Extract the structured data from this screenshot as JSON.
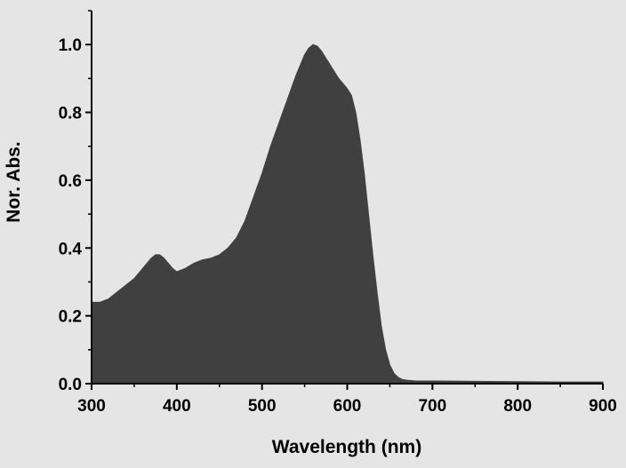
{
  "chart_data": {
    "type": "area",
    "title": "",
    "xlabel": "Wavelength (nm)",
    "ylabel": "Nor. Abs.",
    "xlim": [
      300,
      900
    ],
    "ylim": [
      0,
      1.1
    ],
    "x_ticks": [
      300,
      400,
      500,
      600,
      700,
      800,
      900
    ],
    "x_tick_labels": [
      "300",
      "400",
      "500",
      "600",
      "700",
      "800",
      "900"
    ],
    "y_ticks": [
      0.0,
      0.2,
      0.4,
      0.6,
      0.8,
      1.0
    ],
    "y_tick_labels": [
      "0.0",
      "0.2",
      "0.4",
      "0.6",
      "0.8",
      "1.0"
    ],
    "grid": false,
    "colors": {
      "background": "#e5e5e5",
      "fill": "#404040",
      "axis": "#000000"
    },
    "series": [
      {
        "x": [
          300,
          310,
          320,
          330,
          340,
          350,
          360,
          370,
          375,
          380,
          385,
          390,
          395,
          400,
          405,
          410,
          420,
          430,
          440,
          450,
          460,
          470,
          480,
          490,
          500,
          510,
          520,
          530,
          540,
          550,
          555,
          560,
          565,
          570,
          580,
          590,
          600,
          605,
          610,
          615,
          620,
          625,
          630,
          635,
          640,
          645,
          650,
          655,
          660,
          665,
          670,
          675,
          680,
          690,
          700,
          750,
          800,
          850,
          900
        ],
        "y": [
          0.24,
          0.24,
          0.25,
          0.27,
          0.29,
          0.31,
          0.34,
          0.37,
          0.38,
          0.38,
          0.37,
          0.355,
          0.34,
          0.33,
          0.335,
          0.34,
          0.355,
          0.365,
          0.37,
          0.38,
          0.4,
          0.43,
          0.48,
          0.55,
          0.62,
          0.7,
          0.77,
          0.84,
          0.91,
          0.97,
          0.99,
          1.0,
          0.995,
          0.98,
          0.94,
          0.9,
          0.87,
          0.85,
          0.8,
          0.72,
          0.62,
          0.5,
          0.38,
          0.27,
          0.17,
          0.1,
          0.055,
          0.03,
          0.018,
          0.012,
          0.01,
          0.009,
          0.008,
          0.008,
          0.008,
          0.007,
          0.006,
          0.005,
          0.005
        ]
      }
    ]
  }
}
